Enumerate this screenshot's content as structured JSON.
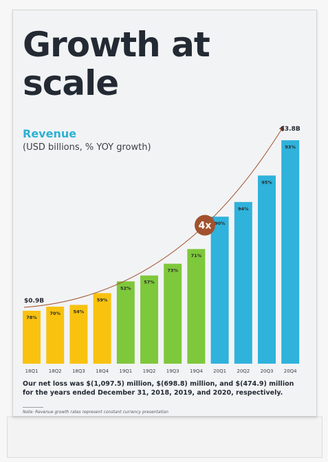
{
  "page": {
    "title": "Growth at\nscale",
    "footnote": "Our net loss was $(1,097.5) million, $(698.8) million, and $(474.9) million for the years ended December 31, 2018, 2019, and 2020, respectively.",
    "note": "Note: Revenue growth rates represent constant currency presentation"
  },
  "chart_data": {
    "type": "bar",
    "title": "Revenue",
    "subtitle": "(USD billions, % YOY growth)",
    "categories": [
      "18Q1",
      "18Q2",
      "18Q3",
      "18Q4",
      "19Q1",
      "19Q2",
      "19Q3",
      "19Q4",
      "20Q1",
      "20Q2",
      "20Q3",
      "20Q4"
    ],
    "values": [
      0.9,
      0.97,
      1.0,
      1.2,
      1.4,
      1.5,
      1.7,
      1.95,
      2.5,
      2.75,
      3.2,
      3.8
    ],
    "growth_labels": [
      "78%",
      "70%",
      "54%",
      "59%",
      "52%",
      "57%",
      "73%",
      "71%",
      "90%",
      "94%",
      "95%",
      "93%"
    ],
    "bar_colors": [
      "#f8c20f",
      "#f8c20f",
      "#f8c20f",
      "#f8c20f",
      "#7ec83b",
      "#7ec83b",
      "#7ec83b",
      "#7ec83b",
      "#2fb2dc",
      "#2fb2dc",
      "#2fb2dc",
      "#2fb2dc"
    ],
    "start_label": "$0.9B",
    "end_label": "$3.8B",
    "multiplier_label": "4x",
    "accent_color": "#a1512d",
    "ylim": [
      0,
      3.8
    ],
    "grid": false
  }
}
